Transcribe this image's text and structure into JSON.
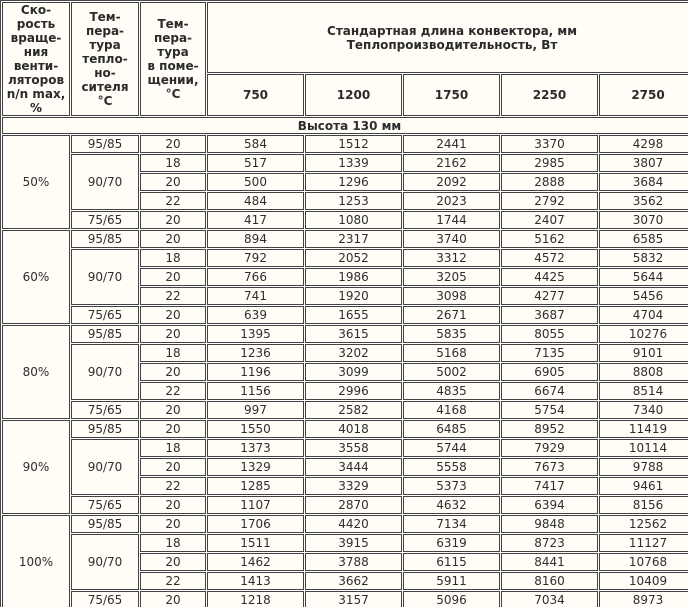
{
  "table": {
    "header": {
      "col_speed": "Ско-\nрость\nвраще-\nния\nвенти-\nляторов\nn/n max,\n%",
      "col_supply_temp": "Тем-\nпера-\nтура\nтепло-\nно-\nсителя\n°C",
      "col_room_temp": "Тем-\nпера-\nтура\nв поме-\nщении,\n°C",
      "col_length": "Стандартная длина конвектора, мм\nТеплопроизводительность, Вт",
      "lengths": [
        "750",
        "1200",
        "1750",
        "2250",
        "2750"
      ]
    },
    "section_title": "Высота 130 мм",
    "groups": [
      {
        "speed": "50%",
        "rows": [
          {
            "supply": "95/85",
            "room": "20",
            "values": [
              584,
              1512,
              2441,
              3370,
              4298
            ]
          },
          {
            "supply": "90/70",
            "room": "18",
            "values": [
              517,
              1339,
              2162,
              2985,
              3807
            ]
          },
          {
            "room": "20",
            "values": [
              500,
              1296,
              2092,
              2888,
              3684
            ]
          },
          {
            "room": "22",
            "values": [
              484,
              1253,
              2023,
              2792,
              3562
            ]
          },
          {
            "supply": "75/65",
            "room": "20",
            "values": [
              417,
              1080,
              1744,
              2407,
              3070
            ]
          }
        ]
      },
      {
        "speed": "60%",
        "rows": [
          {
            "supply": "95/85",
            "room": "20",
            "values": [
              894,
              2317,
              3740,
              5162,
              6585
            ]
          },
          {
            "supply": "90/70",
            "room": "18",
            "values": [
              792,
              2052,
              3312,
              4572,
              5832
            ]
          },
          {
            "room": "20",
            "values": [
              766,
              1986,
              3205,
              4425,
              5644
            ]
          },
          {
            "room": "22",
            "values": [
              741,
              1920,
              3098,
              4277,
              5456
            ]
          },
          {
            "supply": "75/65",
            "room": "20",
            "values": [
              639,
              1655,
              2671,
              3687,
              4704
            ]
          }
        ]
      },
      {
        "speed": "80%",
        "rows": [
          {
            "supply": "95/85",
            "room": "20",
            "values": [
              1395,
              3615,
              5835,
              8055,
              10276
            ]
          },
          {
            "supply": "90/70",
            "room": "18",
            "values": [
              1236,
              3202,
              5168,
              7135,
              9101
            ]
          },
          {
            "room": "20",
            "values": [
              1196,
              3099,
              5002,
              6905,
              8808
            ]
          },
          {
            "room": "22",
            "values": [
              1156,
              2996,
              4835,
              6674,
              8514
            ]
          },
          {
            "supply": "75/65",
            "room": "20",
            "values": [
              997,
              2582,
              4168,
              5754,
              7340
            ]
          }
        ]
      },
      {
        "speed": "90%",
        "rows": [
          {
            "supply": "95/85",
            "room": "20",
            "values": [
              1550,
              4018,
              6485,
              8952,
              11419
            ]
          },
          {
            "supply": "90/70",
            "room": "18",
            "values": [
              1373,
              3558,
              5744,
              7929,
              10114
            ]
          },
          {
            "room": "20",
            "values": [
              1329,
              3444,
              5558,
              7673,
              9788
            ]
          },
          {
            "room": "22",
            "values": [
              1285,
              3329,
              5373,
              7417,
              9461
            ]
          },
          {
            "supply": "75/65",
            "room": "20",
            "values": [
              1107,
              2870,
              4632,
              6394,
              8156
            ]
          }
        ]
      },
      {
        "speed": "100%",
        "rows": [
          {
            "supply": "95/85",
            "room": "20",
            "values": [
              1706,
              4420,
              7134,
              9848,
              12562
            ]
          },
          {
            "supply": "90/70",
            "room": "18",
            "values": [
              1511,
              3915,
              6319,
              8723,
              11127
            ]
          },
          {
            "room": "20",
            "values": [
              1462,
              3788,
              6115,
              8441,
              10768
            ]
          },
          {
            "room": "22",
            "values": [
              1413,
              3662,
              5911,
              8160,
              10409
            ]
          },
          {
            "supply": "75/65",
            "room": "20",
            "values": [
              1218,
              3157,
              5096,
              7034,
              8973
            ]
          }
        ]
      }
    ]
  }
}
